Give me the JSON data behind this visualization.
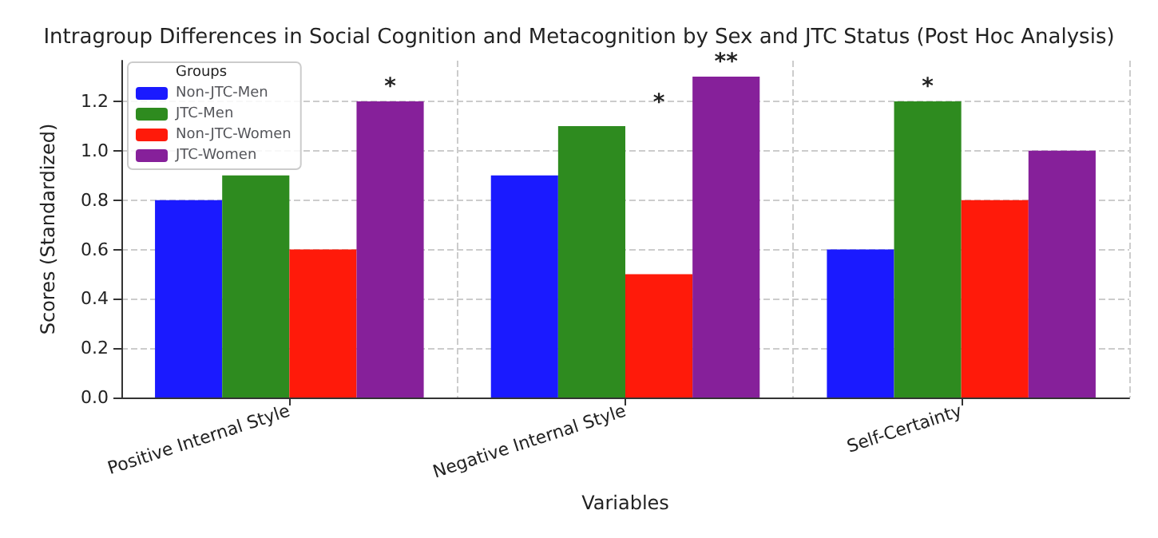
{
  "chart_data": {
    "type": "bar",
    "title": "Intragroup Differences in Social Cognition and Metacognition by Sex and JTC Status (Post Hoc Analysis)",
    "xlabel": "Variables",
    "ylabel": "Scores (Standardized)",
    "legend_title": "Groups",
    "categories": [
      "Positive Internal Style",
      "Negative Internal Style",
      "Self-Certainty"
    ],
    "series": [
      {
        "name": "Non-JTC-Men",
        "color": "#1a1aff",
        "values": [
          0.8,
          0.9,
          0.6
        ]
      },
      {
        "name": "JTC-Men",
        "color": "#2e8b1f",
        "values": [
          0.9,
          1.1,
          1.2
        ]
      },
      {
        "name": "Non-JTC-Women",
        "color": "#ff1a0a",
        "values": [
          0.6,
          0.5,
          0.8
        ]
      },
      {
        "name": "JTC-Women",
        "color": "#86209a",
        "values": [
          1.2,
          1.3,
          1.0
        ]
      }
    ],
    "ylim": [
      0,
      1.365
    ],
    "yticks": [
      {
        "value": 0,
        "label": "0.0"
      },
      0.2,
      0.4,
      0.6,
      0.8,
      {
        "value": 1,
        "label": "1.0"
      },
      1.2
    ],
    "grid": true,
    "legend": "top left",
    "annotations": [
      "*",
      "*",
      "**",
      {
        "text": "*",
        "x": "Self-Certainty",
        "y": 1.2
      }
    ]
  }
}
